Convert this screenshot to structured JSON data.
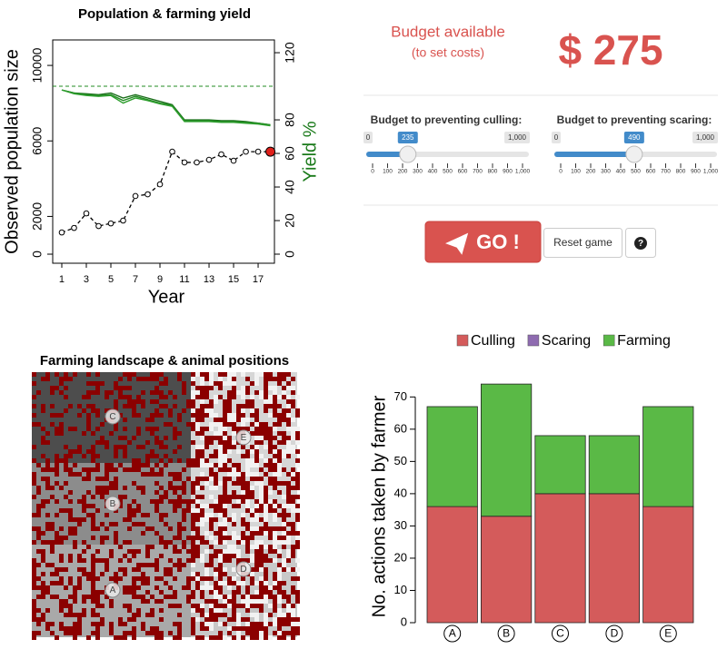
{
  "chart_data": [
    {
      "type": "line",
      "title": "Population & farming yield",
      "xlabel": "Year",
      "ylabel": "Observed population size",
      "y2label": "Yield %",
      "x": [
        1,
        2,
        3,
        4,
        5,
        6,
        7,
        8,
        9,
        10,
        11,
        12,
        13,
        14,
        15,
        16,
        17,
        18
      ],
      "series": [
        {
          "color": "#000000",
          "dashed": true,
          "markers": true,
          "highlight_last": "#e0201b",
          "values": [
            1150,
            1390,
            2160,
            1490,
            1630,
            1780,
            3080,
            3170,
            3700,
            5430,
            4860,
            4860,
            5000,
            5290,
            4950,
            5430,
            5430,
            5430
          ]
        },
        {
          "color": "#1a6e1a",
          "axis": "y2",
          "values": [
            97.8,
            96,
            95.5,
            95,
            96,
            93,
            95,
            93,
            91,
            89,
            80,
            80,
            80,
            79.5,
            79.5,
            79,
            78,
            77
          ]
        },
        {
          "color": "#228b22",
          "axis": "y2",
          "values": [
            97.8,
            96,
            95,
            94.5,
            95,
            91.5,
            94,
            92,
            90,
            88.5,
            79.5,
            79.5,
            79.5,
            79,
            79,
            78.5,
            78,
            77
          ]
        },
        {
          "color": "#2e9e2e",
          "axis": "y2",
          "values": [
            97.8,
            95.5,
            94.5,
            94,
            94.5,
            90,
            93,
            91.5,
            89.5,
            88,
            79,
            79,
            79,
            78.5,
            78.5,
            78,
            77.5,
            76.5
          ]
        }
      ],
      "hline": {
        "value": 100,
        "color": "#228b22",
        "axis": "y2"
      },
      "xlim": [
        0.26,
        18.33
      ],
      "xticks": [
        1,
        3,
        5,
        7,
        9,
        11,
        13,
        15,
        17
      ],
      "ylim": [
        -480,
        11350
      ],
      "yticks": [
        0,
        2000,
        6000,
        10000
      ],
      "y2lim": [
        -5.4,
        127.6
      ],
      "y2ticks": [
        0,
        20,
        40,
        60,
        80,
        120
      ],
      "y2color": "#1a7a1a"
    },
    {
      "type": "bar",
      "stacked": true,
      "ylabel": "No. actions taken by farmer",
      "categories": [
        "A",
        "B",
        "C",
        "D",
        "E"
      ],
      "series": [
        {
          "name": "Culling",
          "color": "#d45b5b",
          "values": [
            36,
            33,
            40,
            40,
            36
          ]
        },
        {
          "name": "Scaring",
          "color": "#8e6bb0",
          "values": [
            0,
            0,
            0,
            0,
            0
          ]
        },
        {
          "name": "Farming",
          "color": "#5ab946",
          "values": [
            31,
            41,
            18,
            18,
            31
          ]
        }
      ],
      "ylim": [
        0,
        76
      ],
      "yticks": [
        0,
        10,
        20,
        30,
        40,
        50,
        60,
        70
      ],
      "legend": "top"
    }
  ],
  "landscape": {
    "title": "Farming landscape & animal positions",
    "animals": [
      "C",
      "E",
      "B",
      "D",
      "A"
    ]
  },
  "budget": {
    "label": "Budget available",
    "note": "(to set costs)",
    "amount": "$ 275"
  },
  "sliders": [
    {
      "title": "Budget to preventing culling:",
      "min": 0,
      "max": {
        "value": 1000,
        "label": "1,000"
      },
      "value": 235,
      "ticks": [
        0,
        100,
        200,
        300,
        400,
        500,
        600,
        700,
        800,
        900,
        {
          "value": 1000,
          "label": "1,000"
        }
      ]
    },
    {
      "title": "Budget to preventing scaring:",
      "min": 0,
      "max": {
        "value": 1000,
        "label": "1,000"
      },
      "value": 490,
      "ticks": [
        0,
        100,
        200,
        300,
        400,
        500,
        600,
        700,
        800,
        900,
        {
          "value": 1000,
          "label": "1,000"
        }
      ]
    }
  ],
  "buttons": {
    "go": "GO !",
    "reset": "Reset game",
    "help": "?"
  }
}
